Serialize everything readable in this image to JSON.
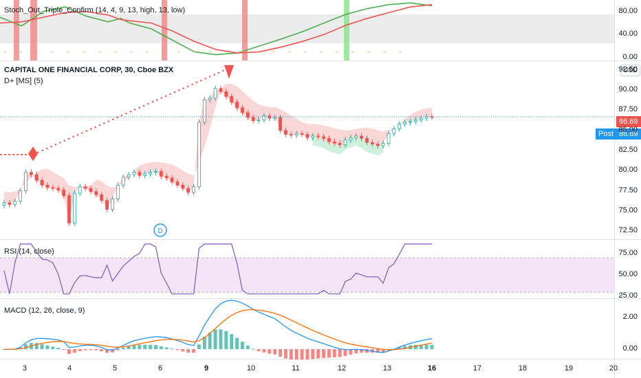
{
  "symbol": {
    "name": "CAPITAL ONE FINANCIAL CORP",
    "interval": "30",
    "exchange": "Cboe BZX",
    "currency": "USD"
  },
  "indicators": {
    "stoch": "Stoch_Out_Triple_Confirm (14, 4, 9, 13, high, 13, low)",
    "dplus": "D+ [MS] (5)",
    "rsi": "RSI (14, close)",
    "macd": "MACD (12, 26, close, 9)"
  },
  "price_badges": {
    "last": "86.69",
    "post_label": "Post",
    "post_value": "86.69"
  },
  "event_marker": "D",
  "colors": {
    "up": "#26a69a",
    "down": "#ef5350",
    "stoch_fast": "#4caf50",
    "stoch_slow": "#ef5350",
    "rsi_line": "#7e57c2",
    "rsi_band": "#f3e5f5",
    "macd_line": "#2196f3",
    "signal_line": "#ff6d00",
    "cloud_red": "#f8c9c9",
    "cloud_green": "#c8efd9",
    "post_badge": "#2196f3"
  },
  "chart_data": [
    {
      "type": "line",
      "panel": "stochastic",
      "title": "Stoch_Out_Triple_Confirm (14, 4, 9, 13, high, 13, low)",
      "y_ticks": [
        "80.00",
        "40.00",
        "0.00"
      ],
      "ylim": [
        -5,
        100
      ],
      "band": [
        25,
        75
      ],
      "series": [
        {
          "x": [
            0,
            5,
            10,
            15,
            20,
            25,
            28,
            30,
            35,
            40,
            45,
            50,
            55,
            60,
            65,
            70,
            75,
            80,
            85,
            90,
            95,
            100
          ],
          "values": [
            70,
            55,
            80,
            88,
            72,
            62,
            68,
            60,
            50,
            30,
            10,
            5,
            8,
            20,
            32,
            45,
            60,
            75,
            85,
            92,
            95,
            90
          ]
        },
        {
          "x": [
            0,
            5,
            10,
            15,
            20,
            25,
            28,
            30,
            35,
            40,
            45,
            50,
            55,
            60,
            65,
            70,
            75,
            80,
            85,
            90,
            95,
            100
          ],
          "values": [
            60,
            62,
            70,
            78,
            80,
            74,
            66,
            64,
            60,
            46,
            28,
            14,
            8,
            10,
            18,
            28,
            40,
            56,
            68,
            78,
            88,
            92
          ]
        }
      ],
      "xlabel": "",
      "ylabel": ""
    },
    {
      "type": "candlestick",
      "panel": "price",
      "title": "CAPITAL ONE FINANCIAL CORP, 30, Cboe BZX",
      "y_ticks": [
        "92.50",
        "90.00",
        "87.50",
        "85.00",
        "82.50",
        "80.00",
        "77.50",
        "75.00",
        "72.50"
      ],
      "ylim": [
        71.5,
        93.5
      ],
      "last_price": 86.69,
      "x_ticks": [
        "3",
        "4",
        "5",
        "6",
        "9",
        "10",
        "11",
        "12",
        "13",
        "16",
        "17",
        "18",
        "19",
        "20"
      ],
      "closes": [
        76,
        75.8,
        76.2,
        77.5,
        79.8,
        79.5,
        78.8,
        78.2,
        77.9,
        77.8,
        77.6,
        76.9,
        73.5,
        77.2,
        78,
        77.8,
        77.4,
        77,
        76.3,
        75.2,
        76.5,
        78.2,
        79.2,
        79.5,
        79.8,
        79.4,
        79.6,
        79.8,
        79.9,
        79.3,
        79.1,
        78.6,
        78.2,
        77.8,
        77.3,
        78,
        86,
        88.8,
        89,
        90.2,
        89.8,
        89.2,
        88.5,
        87.8,
        87.2,
        86.6,
        86.2,
        86.3,
        86.8,
        86.5,
        86.6,
        85,
        84.5,
        84.4,
        84.6,
        84.5,
        84.1,
        84.3,
        84.2,
        84,
        83.6,
        83.4,
        83.2,
        83.8,
        84.1,
        84.3,
        84,
        83.5,
        83.3,
        83.1,
        83.4,
        84.6,
        85.2,
        85.8,
        86,
        86.1,
        86.3,
        86.5,
        86.7,
        86.69
      ],
      "xlabel": "",
      "ylabel": ""
    },
    {
      "type": "line",
      "panel": "rsi",
      "title": "RSI (14, close)",
      "y_ticks": [
        "75.00",
        "50.00",
        "25.00"
      ],
      "ylim": [
        23,
        90
      ],
      "band": [
        30,
        70
      ],
      "xlabel": "",
      "ylabel": ""
    },
    {
      "type": "bar",
      "panel": "macd",
      "title": "MACD (12, 26, close, 9)",
      "y_ticks": [
        "2.00",
        "0.00"
      ],
      "ylim": [
        -0.6,
        3.1
      ],
      "xlabel": "",
      "ylabel": ""
    }
  ]
}
